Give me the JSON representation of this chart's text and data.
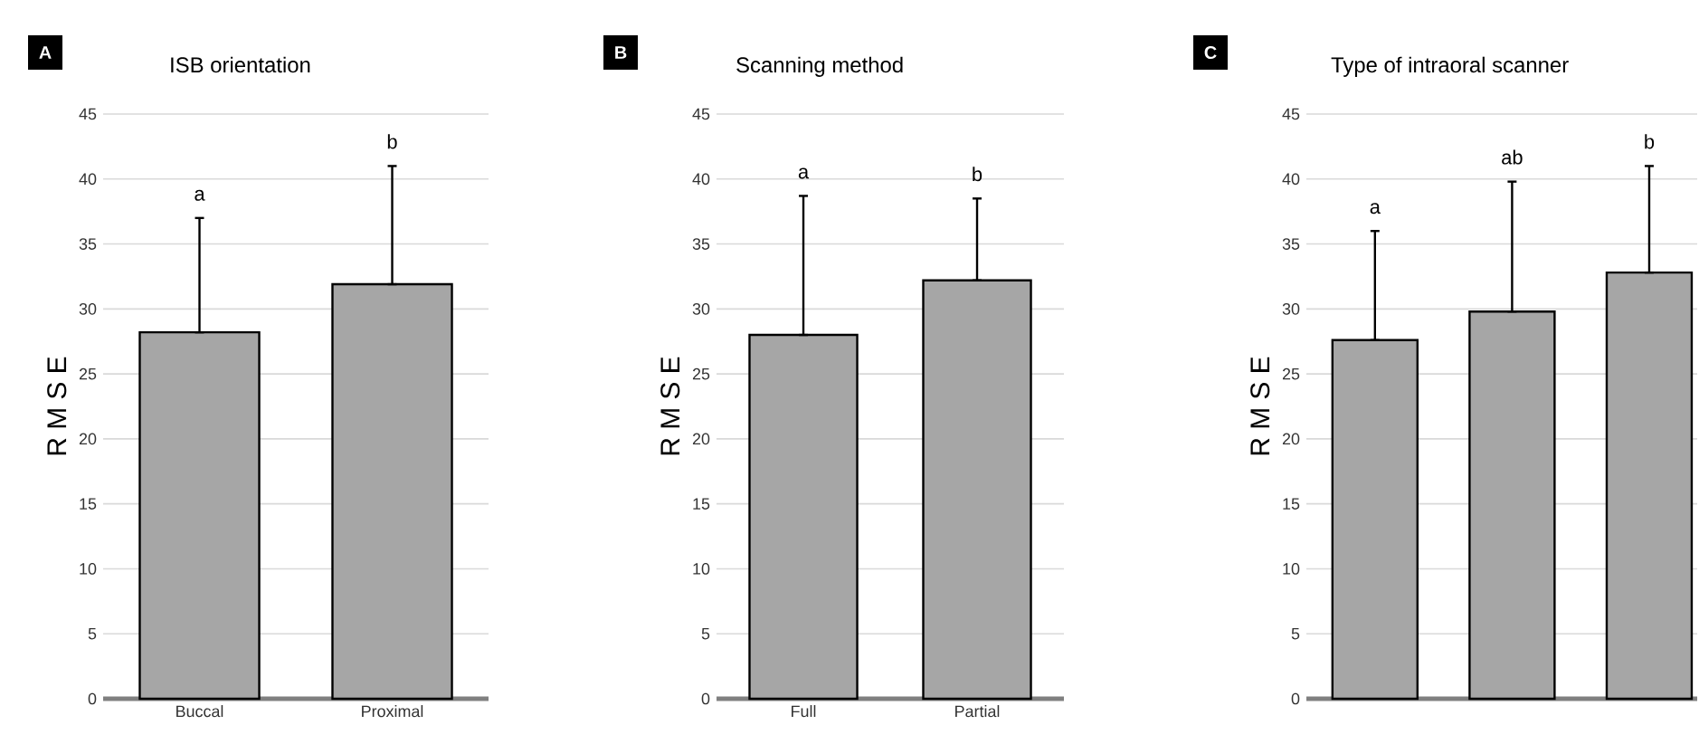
{
  "chart_data": [
    {
      "type": "bar",
      "title": "ISB orientation",
      "ylabel": "R M S E",
      "categories": [
        "Buccal",
        "Proximal"
      ],
      "values": [
        28.2,
        31.9
      ],
      "errors": [
        [
          28.2,
          37.0
        ],
        [
          31.9,
          41.0
        ]
      ],
      "color": "#a6a6a6",
      "ylim": [
        0,
        45
      ],
      "yticks": [
        0,
        5,
        10,
        15,
        20,
        25,
        30,
        35,
        40,
        45
      ],
      "grid": "y",
      "annotations": [
        "A",
        "a",
        "b"
      ]
    },
    {
      "type": "bar",
      "title": "Scanning method",
      "ylabel": "R M S E",
      "categories": [
        "Full",
        "Partial"
      ],
      "values": [
        28.0,
        32.2
      ],
      "errors": [
        [
          28.0,
          38.7
        ],
        [
          32.2,
          38.5
        ]
      ],
      "color": "#a6a6a6",
      "ylim": [
        0,
        45
      ],
      "yticks": [
        0,
        5,
        10,
        15,
        20,
        25,
        30,
        35,
        40,
        45
      ],
      "grid": "y",
      "annotations": [
        "B",
        "a",
        "b"
      ]
    },
    {
      "type": "bar",
      "title": "Type of intraoral scanner",
      "ylabel": "R M S E",
      "categories": [
        null,
        null,
        null
      ],
      "values": [
        27.6,
        29.8,
        32.8
      ],
      "errors": [
        [
          27.6,
          36.0
        ],
        [
          29.8,
          39.8
        ],
        [
          32.8,
          41.0
        ]
      ],
      "color": "#a6a6a6",
      "ylim": [
        0,
        45
      ],
      "yticks": [
        0,
        5,
        10,
        15,
        20,
        25,
        30,
        35,
        40,
        45
      ],
      "grid": "y",
      "annotations": [
        "C",
        "a",
        "ab",
        "b"
      ]
    }
  ]
}
